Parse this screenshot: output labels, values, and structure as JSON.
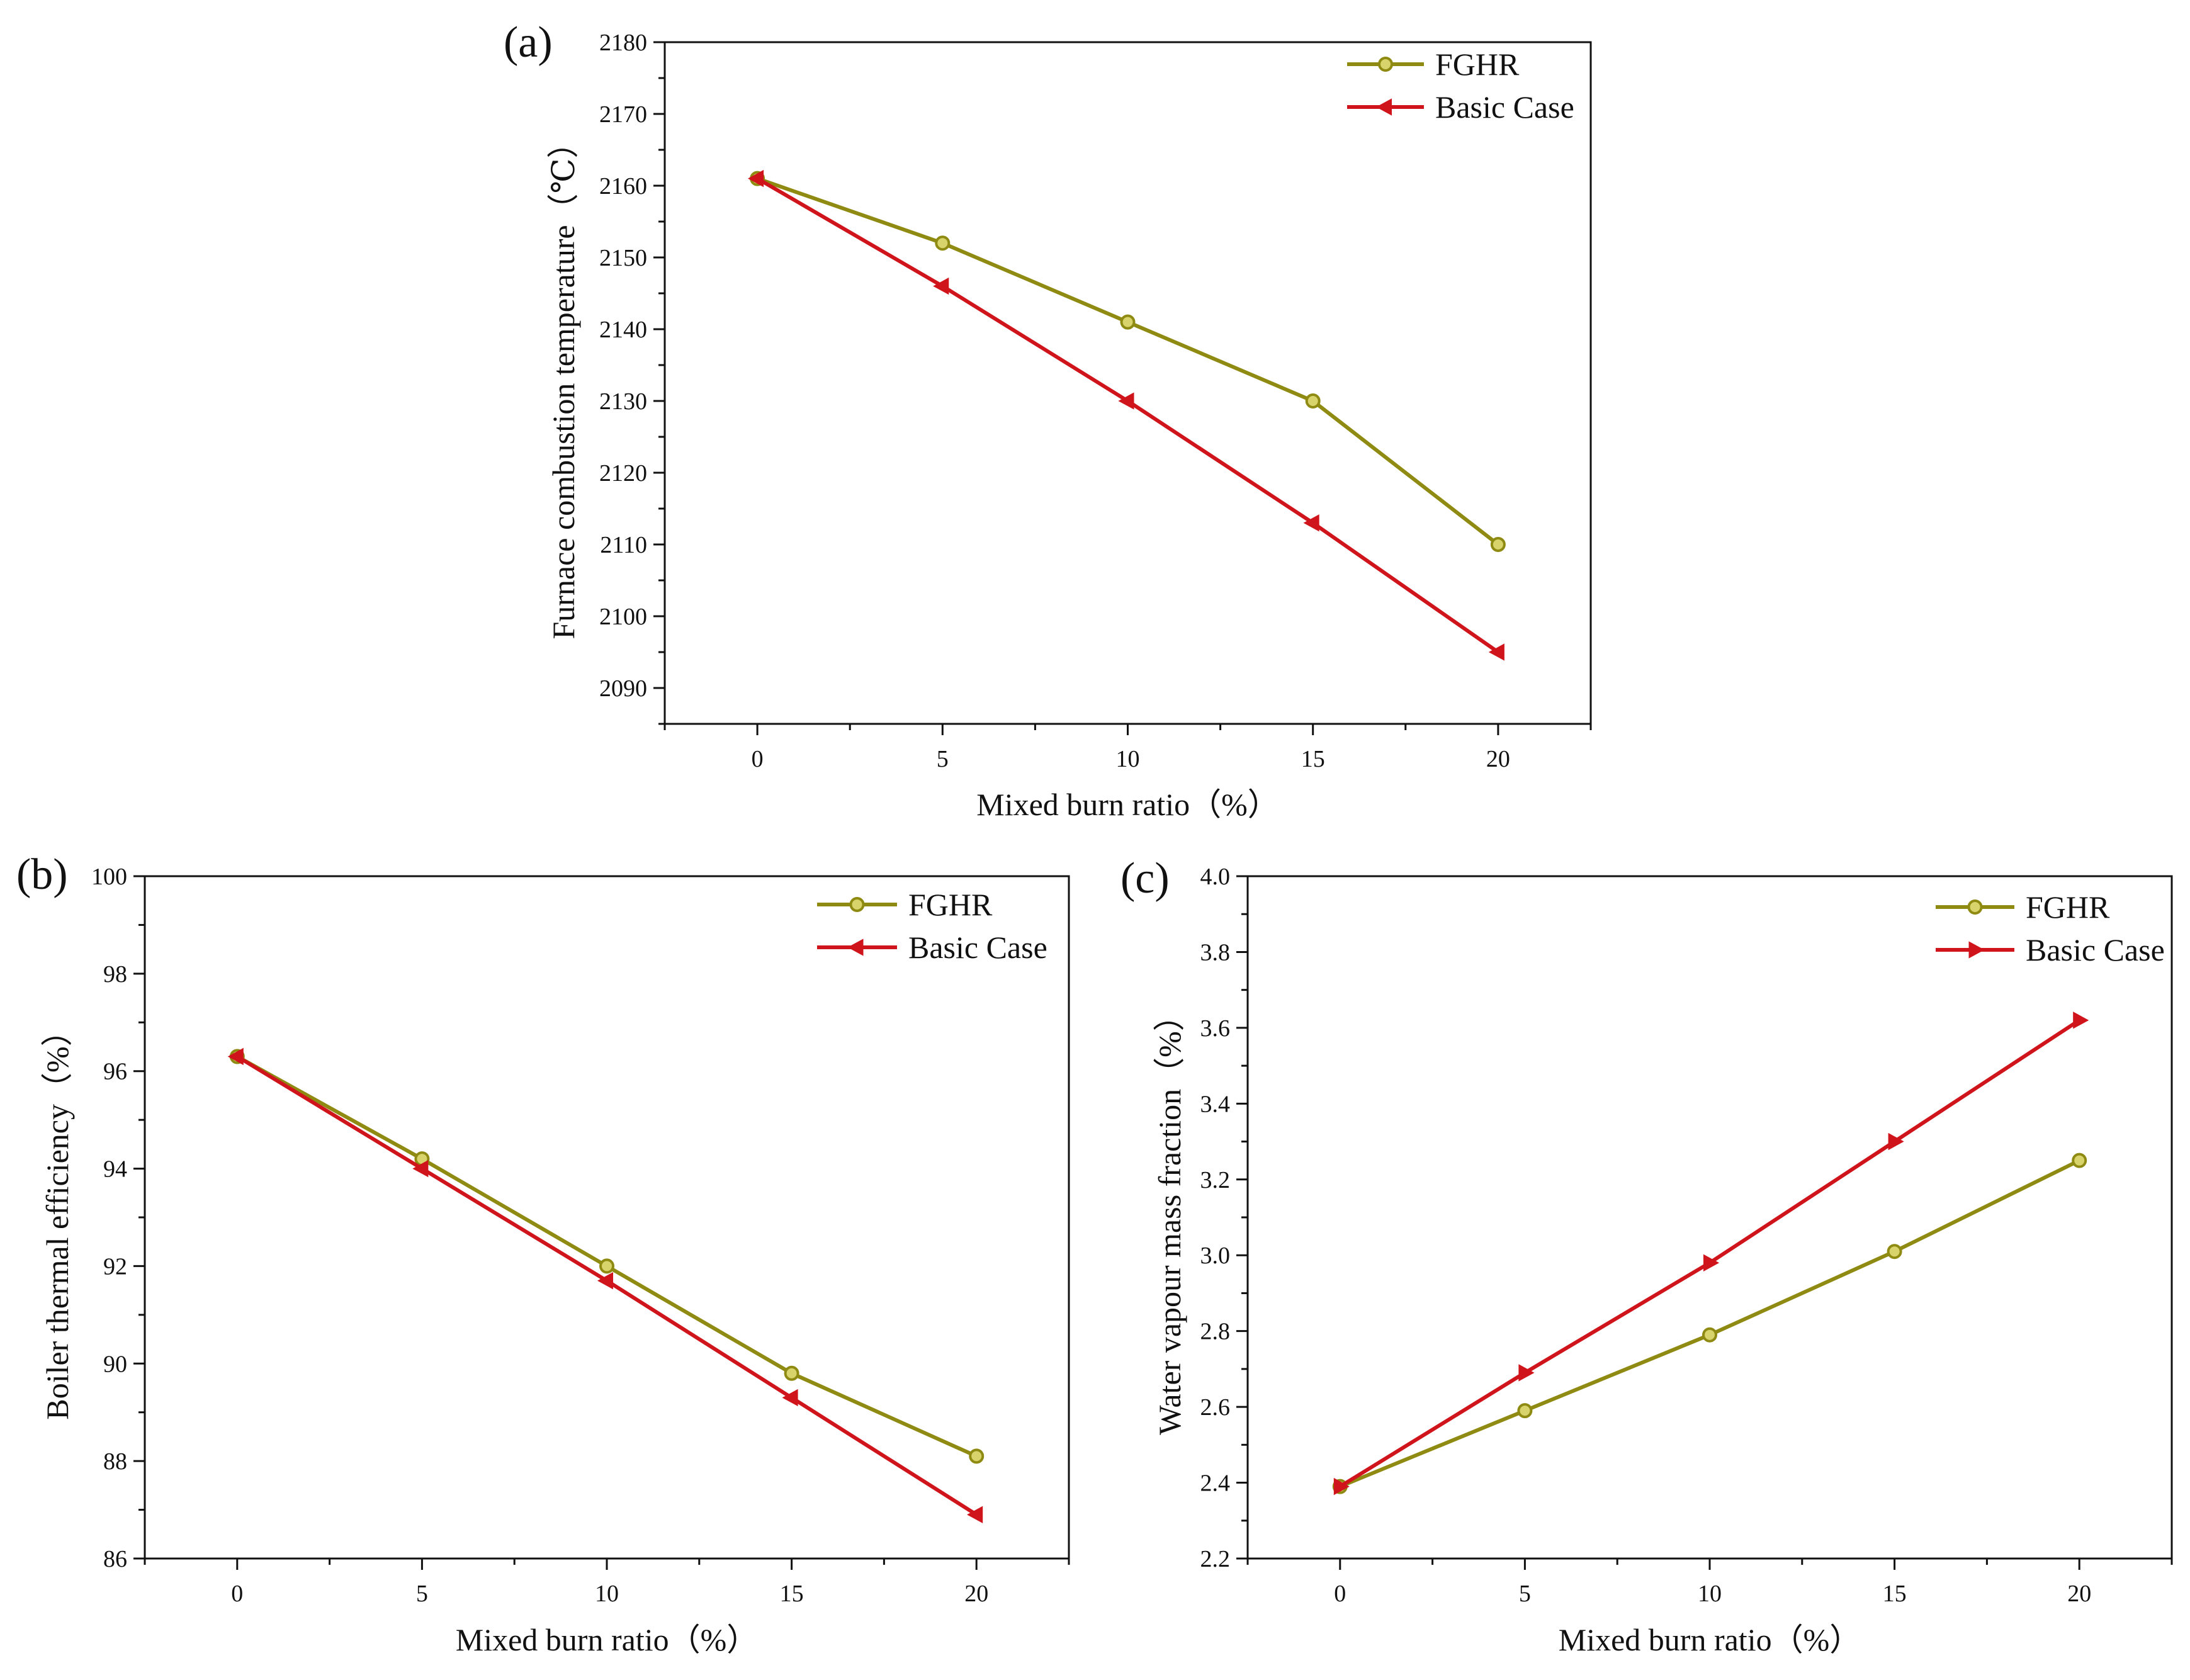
{
  "chart_data": [
    {
      "type": "line",
      "panel_label": "(a)",
      "title": "",
      "xlabel": "Mixed burn ratio（%）",
      "ylabel": "Furnace combustion temperature（℃）",
      "x": [
        0,
        5,
        10,
        15,
        20
      ],
      "xlim": [
        -2.5,
        22.5
      ],
      "ylim": [
        2085,
        2180
      ],
      "xticks": [
        "0",
        "5",
        "10",
        "15",
        "20"
      ],
      "yticks": [
        "2090",
        "2100",
        "2110",
        "2120",
        "2130",
        "2140",
        "2150",
        "2160",
        "2170",
        "2180"
      ],
      "legend_position": "top-right",
      "series": [
        {
          "name": "FGHR",
          "color": "#8f8a12",
          "marker": "circle",
          "values": [
            2161,
            2152,
            2141,
            2130,
            2110
          ]
        },
        {
          "name": "Basic Case",
          "color": "#d0141b",
          "marker": "triangle-left",
          "values": [
            2161,
            2146,
            2130,
            2113,
            2095
          ]
        }
      ]
    },
    {
      "type": "line",
      "panel_label": "(b)",
      "title": "",
      "xlabel": "Mixed burn ratio（%）",
      "ylabel": "Boiler thermal efficiency（%）",
      "x": [
        0,
        5,
        10,
        15,
        20
      ],
      "xlim": [
        -2.5,
        22.5
      ],
      "ylim": [
        86,
        100
      ],
      "xticks": [
        "0",
        "5",
        "10",
        "15",
        "20"
      ],
      "yticks": [
        "86",
        "88",
        "90",
        "92",
        "94",
        "96",
        "98",
        "100"
      ],
      "legend_position": "top-right",
      "series": [
        {
          "name": "FGHR",
          "color": "#8f8a12",
          "marker": "circle",
          "values": [
            96.3,
            94.2,
            92.0,
            89.8,
            88.1
          ]
        },
        {
          "name": "Basic Case",
          "color": "#d0141b",
          "marker": "triangle-left",
          "values": [
            96.3,
            94.0,
            91.7,
            89.3,
            86.9
          ]
        }
      ]
    },
    {
      "type": "line",
      "panel_label": "(c)",
      "title": "",
      "xlabel": "Mixed burn ratio（%）",
      "ylabel": "Water vapour mass fraction（%）",
      "x": [
        0,
        5,
        10,
        15,
        20
      ],
      "xlim": [
        -2.5,
        22.5
      ],
      "ylim": [
        2.2,
        4.0
      ],
      "xticks": [
        "0",
        "5",
        "10",
        "15",
        "20"
      ],
      "yticks": [
        "2.2",
        "2.4",
        "2.6",
        "2.8",
        "3.0",
        "3.2",
        "3.4",
        "3.6",
        "3.8",
        "4.0"
      ],
      "legend_position": "top-right",
      "series": [
        {
          "name": "FGHR",
          "color": "#8f8a12",
          "marker": "circle",
          "values": [
            2.39,
            2.59,
            2.79,
            3.01,
            3.25
          ]
        },
        {
          "name": "Basic Case",
          "color": "#d0141b",
          "marker": "triangle-right",
          "values": [
            2.39,
            2.69,
            2.98,
            3.3,
            3.62
          ]
        }
      ]
    }
  ]
}
